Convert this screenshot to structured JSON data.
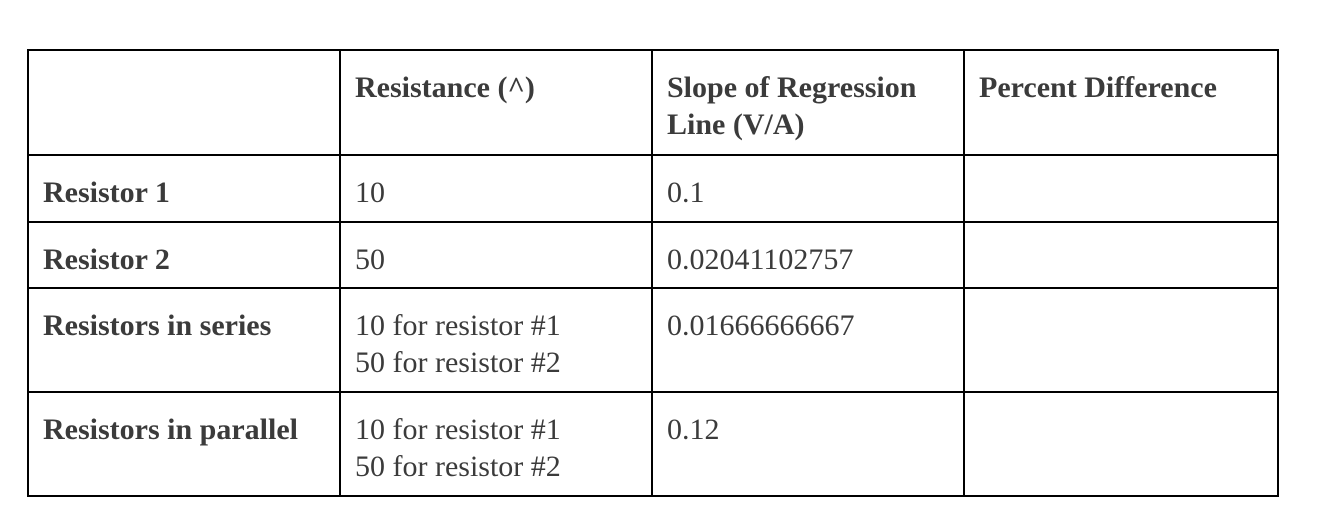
{
  "table": {
    "headers": [
      "",
      "Resistance (^)",
      "Slope of Regression Line (V/A)",
      "Percent Difference"
    ],
    "header_lines": {
      "slope": [
        "Slope of Regression",
        "Line (V/A)"
      ]
    },
    "rows": [
      {
        "label": "Resistor 1",
        "resistance": [
          "10"
        ],
        "slope": "0.1",
        "percent_difference": ""
      },
      {
        "label": "Resistor 2",
        "resistance": [
          "50"
        ],
        "slope": "0.02041102757",
        "percent_difference": ""
      },
      {
        "label": "Resistors in series",
        "resistance": [
          "10 for resistor #1",
          "50 for resistor #2"
        ],
        "slope": "0.01666666667",
        "percent_difference": ""
      },
      {
        "label": "Resistors in parallel",
        "resistance": [
          "10 for resistor #1",
          "50 for resistor #2"
        ],
        "slope": "0.12",
        "percent_difference": ""
      }
    ]
  }
}
